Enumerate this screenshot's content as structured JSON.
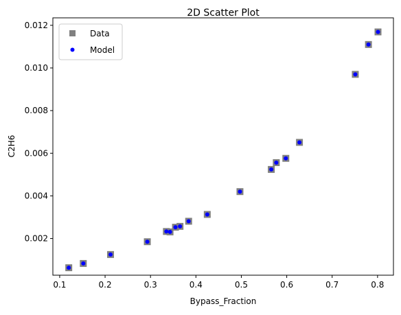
{
  "chart_data": {
    "type": "scatter",
    "title": "2D Scatter Plot",
    "xlabel": "Bypass_Fraction",
    "ylabel": "C2H6",
    "xlim": [
      0.085,
      0.835
    ],
    "ylim": [
      0.00028,
      0.01235
    ],
    "xticks": [
      0.1,
      0.2,
      0.3,
      0.4,
      0.5,
      0.6,
      0.7,
      0.8
    ],
    "xtick_labels": [
      "0.1",
      "0.2",
      "0.3",
      "0.4",
      "0.5",
      "0.6",
      "0.7",
      "0.8"
    ],
    "yticks": [
      0.002,
      0.004,
      0.006,
      0.008,
      0.01,
      0.012
    ],
    "ytick_labels": [
      "0.002",
      "0.004",
      "0.006",
      "0.008",
      "0.010",
      "0.012"
    ],
    "grid": false,
    "legend_position": "top-left",
    "series": [
      {
        "name": "Data",
        "marker": "square",
        "color": "#808080",
        "x": [
          0.12,
          0.152,
          0.212,
          0.293,
          0.335,
          0.343,
          0.355,
          0.365,
          0.384,
          0.425,
          0.497,
          0.566,
          0.577,
          0.598,
          0.628,
          0.751,
          0.78,
          0.801
        ],
        "y": [
          0.00063,
          0.00083,
          0.00125,
          0.00185,
          0.00233,
          0.00231,
          0.00253,
          0.00257,
          0.00281,
          0.00313,
          0.0042,
          0.00524,
          0.00556,
          0.00576,
          0.00651,
          0.0097,
          0.0111,
          0.01169
        ]
      },
      {
        "name": "Model",
        "marker": "circle",
        "color": "#0000ff",
        "x": [
          0.12,
          0.152,
          0.212,
          0.293,
          0.335,
          0.343,
          0.355,
          0.365,
          0.384,
          0.425,
          0.497,
          0.566,
          0.577,
          0.598,
          0.628,
          0.751,
          0.78,
          0.801
        ],
        "y": [
          0.00063,
          0.00083,
          0.00125,
          0.00185,
          0.00233,
          0.00231,
          0.00253,
          0.00257,
          0.00281,
          0.00313,
          0.0042,
          0.00524,
          0.00556,
          0.00576,
          0.00651,
          0.0097,
          0.0111,
          0.01169
        ]
      }
    ]
  }
}
